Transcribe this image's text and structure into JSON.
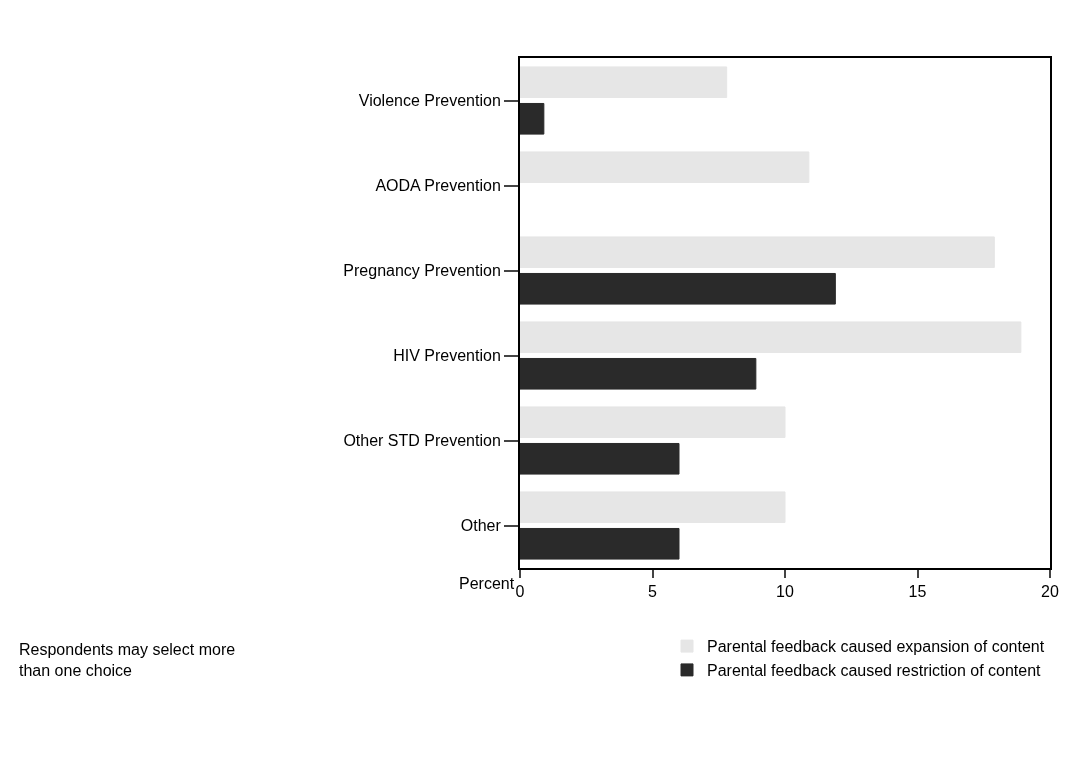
{
  "chart_data": {
    "type": "bar",
    "orientation": "horizontal",
    "categories": [
      "Violence Prevention",
      "AODA Prevention",
      "Pregnancy Prevention",
      "HIV Prevention",
      "Other STD Prevention",
      "Other"
    ],
    "series": [
      {
        "name": "Parental feedback caused expansion of content",
        "color": "#e6e6e6",
        "values": [
          7.8,
          10.9,
          17.9,
          18.9,
          10,
          10
        ]
      },
      {
        "name": "Parental feedback caused restriction of content",
        "color": "#2a2a2a",
        "values": [
          0.9,
          null,
          11.9,
          8.9,
          6,
          6
        ]
      }
    ],
    "xlabel": "Percent",
    "xlim": [
      0,
      20
    ],
    "xticks": [
      0,
      5,
      10,
      15,
      20
    ],
    "legend": "bottom right",
    "annotations": [
      "Respondents may select more than one choice"
    ]
  }
}
